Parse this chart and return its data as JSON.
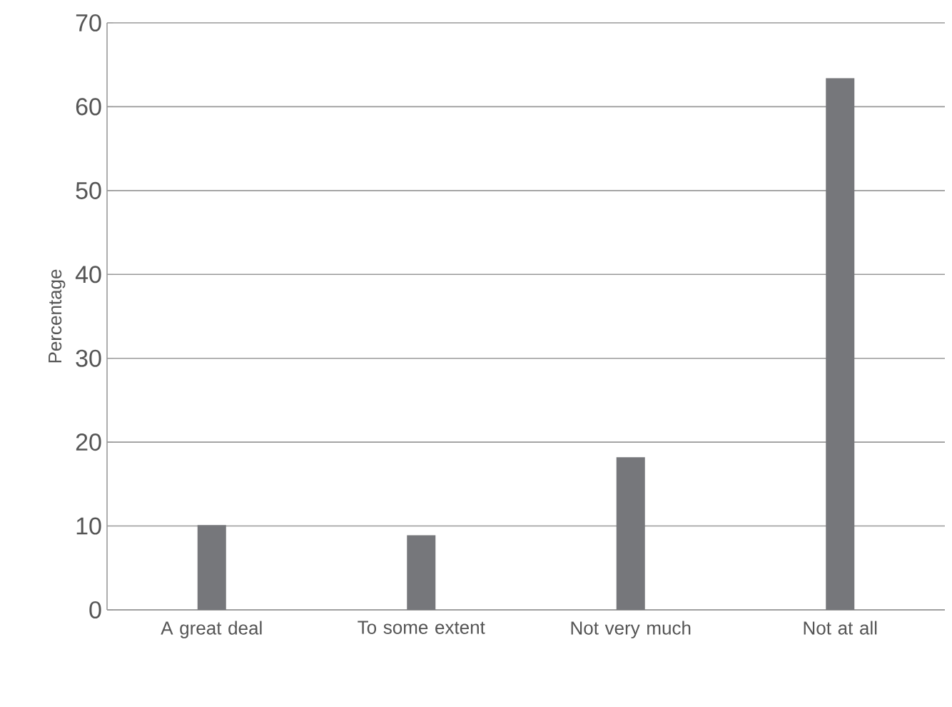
{
  "chart_data": {
    "type": "bar",
    "ylabel": "Percentage",
    "categories": [
      "A great deal",
      "To some extent",
      "Not very much",
      "Not at all"
    ],
    "values": [
      10.1,
      8.9,
      18.2,
      63.4
    ],
    "color": "#76777b",
    "ylim": [
      0,
      70
    ],
    "yticks": [
      0,
      10,
      20,
      30,
      40,
      50,
      60,
      70
    ],
    "grid": "y"
  }
}
